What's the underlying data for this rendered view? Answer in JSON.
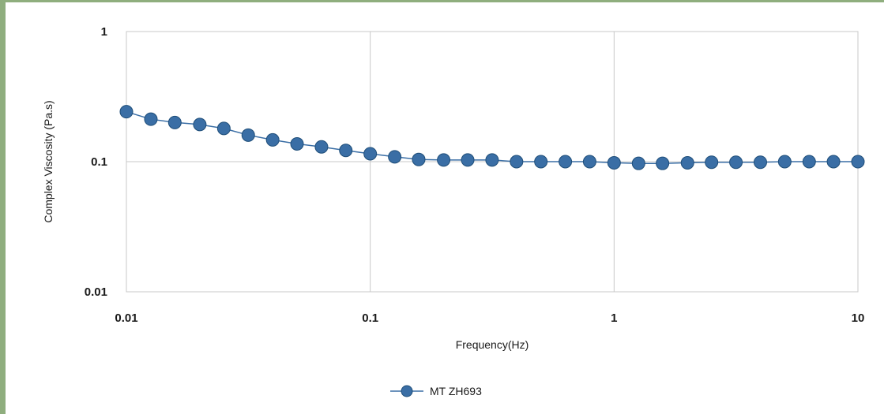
{
  "chart_data": {
    "type": "line",
    "xlabel": "Frequency(Hz)",
    "ylabel": "Complex Viscosity (Pa.s)",
    "xscale": "log",
    "yscale": "log",
    "xlim": [
      0.01,
      10
    ],
    "ylim": [
      0.01,
      1
    ],
    "x_ticks": [
      "0.01",
      "0.1",
      "1",
      "10"
    ],
    "y_ticks": [
      "0.01",
      "0.1",
      "1"
    ],
    "grid": true,
    "legend_position": "bottom",
    "series": [
      {
        "name": "MT ZH693",
        "color": "#3a6ea5",
        "x": [
          0.01,
          0.0126,
          0.0158,
          0.02,
          0.0251,
          0.0316,
          0.0398,
          0.0501,
          0.0631,
          0.0794,
          0.1,
          0.126,
          0.158,
          0.2,
          0.251,
          0.316,
          0.398,
          0.501,
          0.631,
          0.794,
          1,
          1.26,
          1.58,
          2,
          2.51,
          3.16,
          3.98,
          5.01,
          6.31,
          7.94,
          10
        ],
        "y": [
          0.242,
          0.212,
          0.2,
          0.193,
          0.18,
          0.16,
          0.147,
          0.137,
          0.13,
          0.122,
          0.115,
          0.109,
          0.104,
          0.103,
          0.103,
          0.103,
          0.1,
          0.1,
          0.1,
          0.1,
          0.098,
          0.097,
          0.097,
          0.098,
          0.099,
          0.099,
          0.099,
          0.1,
          0.1,
          0.1,
          0.1
        ]
      }
    ]
  }
}
